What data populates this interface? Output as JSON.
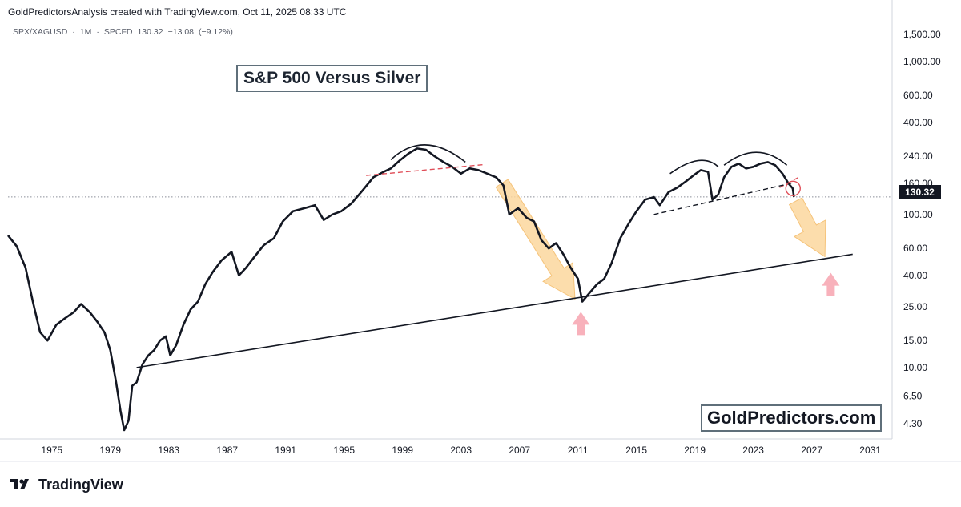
{
  "header": {
    "attribution": "GoldPredictorsAnalysis created with TradingView.com, Oct 11, 2025 08:33 UTC"
  },
  "ticker": {
    "symbol": "SPX/XAGUSD",
    "interval": "1M",
    "source": "SPCFD",
    "last": "130.32",
    "change": "−13.08",
    "change_pct": "(−9.12%)",
    "separator": "·"
  },
  "price_badge": "130.32",
  "annotations": {
    "title": "S&P 500 Versus Silver",
    "watermark": "GoldPredictors.com"
  },
  "footer": {
    "brand": "TradingView"
  },
  "colors": {
    "line": "#131722",
    "arrow_fill": "#fbd79e",
    "arrow_stroke": "#f5c37a",
    "pink_arrow": "#f7a9b4",
    "red_dash": "#e0505a",
    "grid": "#e6e8ec"
  },
  "chart_data": {
    "type": "line",
    "title": "S&P 500 Versus Silver",
    "scale": "log",
    "xlabel": "",
    "ylabel": "",
    "xlim": [
      1972.0,
      2032.5
    ],
    "ylim": [
      3.9,
      1800
    ],
    "x_ticks": [
      "1975",
      "1979",
      "1983",
      "1987",
      "1991",
      "1995",
      "1999",
      "2003",
      "2007",
      "2011",
      "2015",
      "2019",
      "2023",
      "2027",
      "2031"
    ],
    "y_ticks": [
      {
        "value": 1500,
        "label": "1,500.00"
      },
      {
        "value": 1000,
        "label": "1,000.00"
      },
      {
        "value": 600,
        "label": "600.00"
      },
      {
        "value": 400,
        "label": "400.00"
      },
      {
        "value": 240,
        "label": "240.00"
      },
      {
        "value": 160,
        "label": "160.00"
      },
      {
        "value": 100,
        "label": "100.00"
      },
      {
        "value": 60,
        "label": "60.00"
      },
      {
        "value": 40,
        "label": "40.00"
      },
      {
        "value": 25,
        "label": "25.00"
      },
      {
        "value": 15,
        "label": "15.00"
      },
      {
        "value": 10,
        "label": "10.00"
      },
      {
        "value": 6.5,
        "label": "6.50"
      },
      {
        "value": 4.3,
        "label": "4.30"
      }
    ],
    "last_value": 130.32,
    "series": [
      {
        "name": "SPX/XAGUSD",
        "points": [
          [
            1972.0,
            73
          ],
          [
            1972.6,
            62
          ],
          [
            1973.2,
            45
          ],
          [
            1973.7,
            27
          ],
          [
            1974.2,
            17
          ],
          [
            1974.7,
            15
          ],
          [
            1975.3,
            19
          ],
          [
            1975.9,
            21
          ],
          [
            1976.5,
            23
          ],
          [
            1977.0,
            26
          ],
          [
            1977.6,
            23
          ],
          [
            1978.1,
            20
          ],
          [
            1978.6,
            17
          ],
          [
            1979.0,
            13
          ],
          [
            1979.4,
            8
          ],
          [
            1979.7,
            5.2
          ],
          [
            1979.95,
            3.9
          ],
          [
            1980.25,
            4.5
          ],
          [
            1980.5,
            7.6
          ],
          [
            1980.8,
            8.0
          ],
          [
            1981.2,
            10.5
          ],
          [
            1981.6,
            12
          ],
          [
            1982.0,
            13
          ],
          [
            1982.4,
            15
          ],
          [
            1982.8,
            16
          ],
          [
            1983.1,
            12
          ],
          [
            1983.5,
            14
          ],
          [
            1984.0,
            19
          ],
          [
            1984.5,
            24
          ],
          [
            1985.0,
            27
          ],
          [
            1985.5,
            35
          ],
          [
            1986.0,
            42
          ],
          [
            1986.6,
            50
          ],
          [
            1987.3,
            57
          ],
          [
            1987.8,
            40
          ],
          [
            1988.3,
            45
          ],
          [
            1988.8,
            52
          ],
          [
            1989.5,
            63
          ],
          [
            1990.2,
            70
          ],
          [
            1990.8,
            90
          ],
          [
            1991.5,
            105
          ],
          [
            1992.3,
            110
          ],
          [
            1993.0,
            115
          ],
          [
            1993.6,
            92
          ],
          [
            1994.2,
            100
          ],
          [
            1994.8,
            105
          ],
          [
            1995.5,
            118
          ],
          [
            1996.3,
            145
          ],
          [
            1997.0,
            175
          ],
          [
            1997.7,
            190
          ],
          [
            1998.2,
            200
          ],
          [
            1998.8,
            225
          ],
          [
            1999.4,
            250
          ],
          [
            2000.0,
            270
          ],
          [
            2000.6,
            265
          ],
          [
            2001.2,
            240
          ],
          [
            2001.8,
            220
          ],
          [
            2002.4,
            205
          ],
          [
            2003.0,
            185
          ],
          [
            2003.6,
            200
          ],
          [
            2004.2,
            195
          ],
          [
            2004.8,
            185
          ],
          [
            2005.4,
            175
          ],
          [
            2005.9,
            155
          ],
          [
            2006.3,
            100
          ],
          [
            2006.9,
            110
          ],
          [
            2007.5,
            95
          ],
          [
            2008.0,
            90
          ],
          [
            2008.5,
            68
          ],
          [
            2009.0,
            60
          ],
          [
            2009.5,
            65
          ],
          [
            2010.0,
            55
          ],
          [
            2010.5,
            45
          ],
          [
            2011.0,
            38
          ],
          [
            2011.3,
            27
          ],
          [
            2011.7,
            30
          ],
          [
            2012.3,
            35
          ],
          [
            2012.8,
            38
          ],
          [
            2013.3,
            48
          ],
          [
            2013.9,
            70
          ],
          [
            2014.5,
            88
          ],
          [
            2015.0,
            105
          ],
          [
            2015.6,
            125
          ],
          [
            2016.2,
            130
          ],
          [
            2016.6,
            115
          ],
          [
            2017.2,
            140
          ],
          [
            2017.8,
            150
          ],
          [
            2018.4,
            165
          ],
          [
            2018.9,
            180
          ],
          [
            2019.4,
            195
          ],
          [
            2019.9,
            190
          ],
          [
            2020.2,
            125
          ],
          [
            2020.6,
            135
          ],
          [
            2021.0,
            175
          ],
          [
            2021.5,
            205
          ],
          [
            2022.0,
            215
          ],
          [
            2022.5,
            200
          ],
          [
            2023.0,
            205
          ],
          [
            2023.5,
            215
          ],
          [
            2024.0,
            220
          ],
          [
            2024.5,
            210
          ],
          [
            2025.0,
            185
          ],
          [
            2025.4,
            160
          ],
          [
            2025.7,
            148
          ],
          [
            2025.78,
            130.32
          ]
        ]
      }
    ],
    "overlays": [
      {
        "kind": "trendline",
        "style": "solid",
        "from": [
          1980.8,
          10.0
        ],
        "to": [
          2029.8,
          55
        ]
      },
      {
        "kind": "neckline",
        "style": "dashed-red",
        "from": [
          1996.5,
          180
        ],
        "to": [
          2004.6,
          212
        ]
      },
      {
        "kind": "neckline",
        "style": "dashed-red",
        "from": [
          2024.8,
          150
        ],
        "to": [
          2026.1,
          175
        ]
      },
      {
        "kind": "trendline",
        "style": "dashed-black",
        "from": [
          2016.2,
          100
        ],
        "to": [
          2025.6,
          160
        ]
      },
      {
        "kind": "arc",
        "from": [
          1998.2,
          228
        ],
        "peak": [
          2000.6,
          285
        ],
        "to": [
          2003.3,
          220
        ]
      },
      {
        "kind": "arc",
        "from": [
          2017.3,
          185
        ],
        "peak": [
          2019.2,
          225
        ],
        "to": [
          2020.6,
          205
        ]
      },
      {
        "kind": "arc",
        "from": [
          2021.0,
          210
        ],
        "peak": [
          2023.2,
          255
        ],
        "to": [
          2025.3,
          210
        ]
      },
      {
        "kind": "circle",
        "at": [
          2025.72,
          148
        ]
      },
      {
        "kind": "projection-arrow",
        "from": [
          2005.8,
          160
        ],
        "to": [
          2010.8,
          28
        ]
      },
      {
        "kind": "projection-arrow",
        "from": [
          2025.9,
          122
        ],
        "to": [
          2027.9,
          53
        ]
      },
      {
        "kind": "support-arrow",
        "at": [
          2011.2,
          20
        ]
      },
      {
        "kind": "support-arrow",
        "at": [
          2028.3,
          36
        ]
      }
    ]
  }
}
